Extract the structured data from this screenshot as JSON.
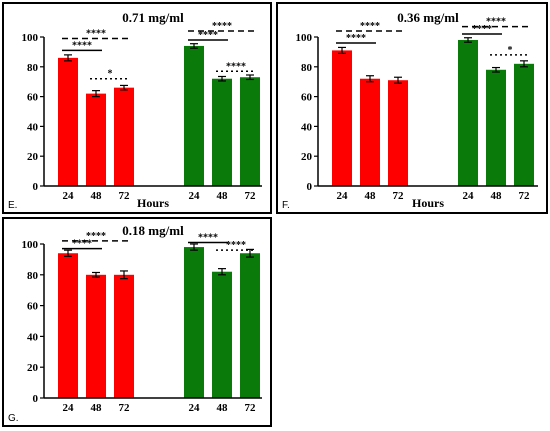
{
  "colors": {
    "red": "#ff0000",
    "green": "#0a7a0a",
    "axis": "#000000"
  },
  "chart_data": [
    {
      "type": "bar",
      "panel_label": "E.",
      "title": "0.71 mg/ml",
      "xlabel": "Hours",
      "ylabel": "",
      "ylim": [
        0,
        100
      ],
      "yticks": [
        0,
        20,
        40,
        60,
        80,
        100
      ],
      "grid": false,
      "groups": [
        {
          "color": "red",
          "categories": [
            "24",
            "48",
            "72"
          ],
          "values": [
            86,
            62,
            66
          ],
          "errors": [
            2,
            2,
            1.5
          ]
        },
        {
          "color": "green",
          "categories": [
            "24",
            "48",
            "72"
          ],
          "values": [
            94,
            72,
            73
          ],
          "errors": [
            1.5,
            1.5,
            1.5
          ]
        }
      ],
      "annotations": [
        {
          "text": "****",
          "style": "solid",
          "group": 0,
          "from": 0,
          "to": 1,
          "y": 91
        },
        {
          "text": "****",
          "style": "dashed",
          "group": 0,
          "from": 0,
          "to": 2,
          "y": 99
        },
        {
          "text": "*",
          "style": "dotted",
          "group": 0,
          "from": 1,
          "to": 2,
          "y": 72
        },
        {
          "text": "****",
          "style": "solid",
          "group": 1,
          "from": 0,
          "to": 1,
          "y": 98
        },
        {
          "text": "****",
          "style": "dashed",
          "group": 1,
          "from": 0,
          "to": 2,
          "y": 104
        },
        {
          "text": "****",
          "style": "dotted",
          "group": 1,
          "from": 1,
          "to": 2,
          "y": 77
        }
      ]
    },
    {
      "type": "bar",
      "panel_label": "F.",
      "title": "0.36 mg/ml",
      "xlabel": "Hours",
      "ylabel": "",
      "ylim": [
        0,
        100
      ],
      "yticks": [
        0,
        20,
        40,
        60,
        80,
        100
      ],
      "grid": false,
      "groups": [
        {
          "color": "red",
          "categories": [
            "24",
            "48",
            "72"
          ],
          "values": [
            91,
            72,
            71
          ],
          "errors": [
            2,
            2,
            2
          ]
        },
        {
          "color": "green",
          "categories": [
            "24",
            "48",
            "72"
          ],
          "values": [
            98,
            78,
            82
          ],
          "errors": [
            1.5,
            1.5,
            2
          ]
        }
      ],
      "annotations": [
        {
          "text": "****",
          "style": "solid",
          "group": 0,
          "from": 0,
          "to": 1,
          "y": 96
        },
        {
          "text": "****",
          "style": "dashed",
          "group": 0,
          "from": 0,
          "to": 2,
          "y": 104
        },
        {
          "text": "****",
          "style": "solid",
          "group": 1,
          "from": 0,
          "to": 1,
          "y": 102
        },
        {
          "text": "****",
          "style": "dashed",
          "group": 1,
          "from": 0,
          "to": 2,
          "y": 107
        },
        {
          "text": "*",
          "style": "dotted",
          "group": 1,
          "from": 1,
          "to": 2,
          "y": 88
        }
      ]
    },
    {
      "type": "bar",
      "panel_label": "G.",
      "title": "0.18 mg/ml",
      "xlabel": "",
      "ylabel": "",
      "ylim": [
        0,
        100
      ],
      "yticks": [
        0,
        20,
        40,
        60,
        80,
        100
      ],
      "grid": false,
      "groups": [
        {
          "color": "red",
          "categories": [
            "24",
            "48",
            "72"
          ],
          "values": [
            94,
            80,
            80
          ],
          "errors": [
            2,
            1.5,
            2.5
          ]
        },
        {
          "color": "green",
          "categories": [
            "24",
            "48",
            "72"
          ],
          "values": [
            98,
            82,
            94
          ],
          "errors": [
            2,
            2,
            2.5
          ]
        }
      ],
      "annotations": [
        {
          "text": "****",
          "style": "solid",
          "group": 0,
          "from": 0,
          "to": 1,
          "y": 97
        },
        {
          "text": "****",
          "style": "dashed",
          "group": 0,
          "from": 0,
          "to": 2,
          "y": 102
        },
        {
          "text": "****",
          "style": "solid",
          "group": 1,
          "from": 0,
          "to": 1,
          "y": 101
        },
        {
          "text": "****",
          "style": "dotted",
          "group": 1,
          "from": 1,
          "to": 2,
          "y": 96
        }
      ]
    }
  ]
}
